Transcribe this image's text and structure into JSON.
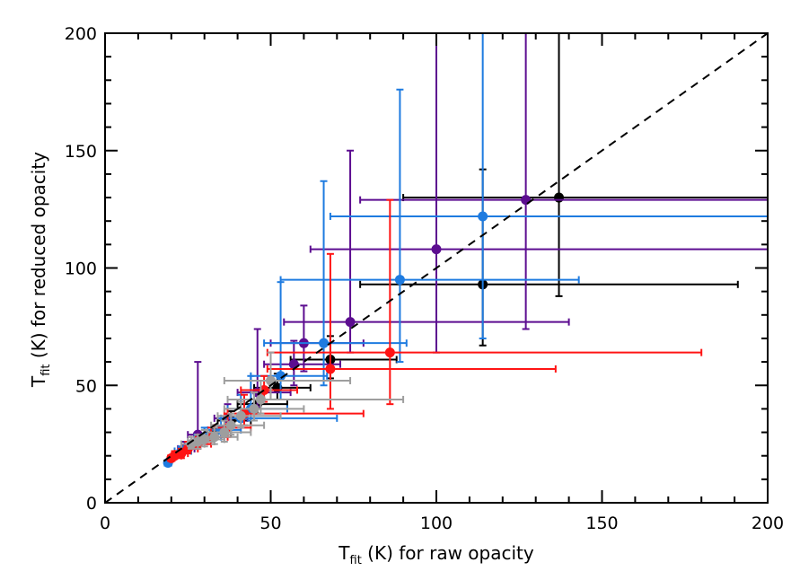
{
  "chart_data": {
    "type": "scatter",
    "title": "",
    "xlim": [
      0,
      200
    ],
    "ylim": [
      0,
      200
    ],
    "x_ticks": [
      0,
      50,
      100,
      150,
      200
    ],
    "y_ticks": [
      0,
      50,
      100,
      150,
      200
    ],
    "xlabel": {
      "main": "T",
      "sub": "fit",
      "rest": " (K) for raw opacity"
    },
    "ylabel": {
      "main": "T",
      "sub": "fit",
      "rest": " (K) for reduced opacity"
    },
    "grid": false,
    "legend": "none",
    "reference_line": {
      "type": "identity",
      "style": "dashed",
      "color": "#000000"
    },
    "series": [
      {
        "color": "#000000",
        "points": [
          {
            "x": 137,
            "y": 130,
            "xerr": [
              47,
              63
            ],
            "yerr": [
              42,
              70
            ]
          },
          {
            "x": 114,
            "y": 93,
            "xerr": [
              37,
              77
            ],
            "yerr": [
              26,
              49
            ]
          },
          {
            "x": 68,
            "y": 61,
            "xerr": [
              12,
              20
            ],
            "yerr": [
              8,
              10
            ]
          },
          {
            "x": 52,
            "y": 49,
            "xerr": [
              7,
              10
            ],
            "yerr": [
              5,
              6
            ]
          },
          {
            "x": 46,
            "y": 42,
            "xerr": [
              6,
              9
            ],
            "yerr": [
              4,
              5
            ]
          },
          {
            "x": 38,
            "y": 35,
            "xerr": [
              4,
              6
            ],
            "yerr": [
              3,
              4
            ]
          },
          {
            "x": 33,
            "y": 30,
            "xerr": [
              3,
              5
            ],
            "yerr": [
              3,
              3
            ]
          }
        ]
      },
      {
        "color": "#5c0d90",
        "points": [
          {
            "x": 127,
            "y": 129,
            "xerr": [
              50,
              73
            ],
            "yerr": [
              55,
              71
            ]
          },
          {
            "x": 100,
            "y": 108,
            "xerr": [
              38,
              100
            ],
            "yerr": [
              44,
              92
            ]
          },
          {
            "x": 74,
            "y": 77,
            "xerr": [
              20,
              66
            ],
            "yerr": [
              13,
              73
            ]
          },
          {
            "x": 60,
            "y": 68,
            "xerr": [
              10,
              18
            ],
            "yerr": [
              12,
              16
            ]
          },
          {
            "x": 57,
            "y": 59,
            "xerr": [
              9,
              14
            ],
            "yerr": [
              9,
              10
            ]
          },
          {
            "x": 46,
            "y": 47,
            "xerr": [
              6,
              10
            ],
            "yerr": [
              6,
              27
            ]
          },
          {
            "x": 37,
            "y": 36,
            "xerr": [
              4,
              6
            ],
            "yerr": [
              4,
              6
            ]
          },
          {
            "x": 28,
            "y": 29,
            "xerr": [
              3,
              4
            ],
            "yerr": [
              4,
              31
            ]
          },
          {
            "x": 24,
            "y": 23,
            "xerr": [
              2,
              3
            ],
            "yerr": [
              2,
              3
            ]
          }
        ]
      },
      {
        "color": "#1e7be0",
        "points": [
          {
            "x": 114,
            "y": 122,
            "xerr": [
              46,
              86
            ],
            "yerr": [
              52,
              78
            ]
          },
          {
            "x": 89,
            "y": 95,
            "xerr": [
              36,
              54
            ],
            "yerr": [
              35,
              81
            ]
          },
          {
            "x": 66,
            "y": 68,
            "xerr": [
              18,
              25
            ],
            "yerr": [
              18,
              69
            ]
          },
          {
            "x": 53,
            "y": 54,
            "xerr": [
              9,
              14
            ],
            "yerr": [
              10,
              40
            ]
          },
          {
            "x": 44,
            "y": 40,
            "xerr": [
              7,
              11
            ],
            "yerr": [
              5,
              14
            ]
          },
          {
            "x": 41,
            "y": 36,
            "xerr": [
              6,
              29
            ],
            "yerr": [
              4,
              10
            ]
          },
          {
            "x": 35,
            "y": 31,
            "xerr": [
              4,
              6
            ],
            "yerr": [
              3,
              5
            ]
          },
          {
            "x": 30,
            "y": 28,
            "xerr": [
              3,
              5
            ],
            "yerr": [
              3,
              4
            ]
          },
          {
            "x": 23,
            "y": 22,
            "xerr": [
              2,
              3
            ],
            "yerr": [
              2,
              2
            ]
          },
          {
            "x": 19,
            "y": 17,
            "xerr": [
              1,
              1
            ],
            "yerr": [
              1,
              1
            ]
          }
        ]
      },
      {
        "color": "#ff1414",
        "points": [
          {
            "x": 86,
            "y": 64,
            "xerr": [
              37,
              94
            ],
            "yerr": [
              22,
              65
            ]
          },
          {
            "x": 68,
            "y": 57,
            "xerr": [
              19,
              68
            ],
            "yerr": [
              17,
              49
            ]
          },
          {
            "x": 48,
            "y": 48,
            "xerr": [
              7,
              10
            ],
            "yerr": [
              5,
              6
            ]
          },
          {
            "x": 42,
            "y": 38,
            "xerr": [
              6,
              36
            ],
            "yerr": [
              5,
              8
            ]
          },
          {
            "x": 37,
            "y": 32,
            "xerr": [
              4,
              7
            ],
            "yerr": [
              4,
              8
            ]
          },
          {
            "x": 32,
            "y": 28,
            "xerr": [
              4,
              5
            ],
            "yerr": [
              3,
              4
            ]
          },
          {
            "x": 28,
            "y": 25,
            "xerr": [
              3,
              4
            ],
            "yerr": [
              2,
              3
            ]
          },
          {
            "x": 25,
            "y": 23,
            "xerr": [
              2,
              3
            ],
            "yerr": [
              2,
              3
            ]
          },
          {
            "x": 23,
            "y": 21,
            "xerr": [
              2,
              2
            ],
            "yerr": [
              2,
              2
            ]
          },
          {
            "x": 21,
            "y": 20,
            "xerr": [
              1,
              2
            ],
            "yerr": [
              1,
              2
            ]
          },
          {
            "x": 20,
            "y": 19,
            "xerr": [
              1,
              1
            ],
            "yerr": [
              1,
              1
            ]
          }
        ]
      },
      {
        "color": "#9e9e9e",
        "points": [
          {
            "x": 50,
            "y": 52,
            "xerr": [
              14,
              24
            ],
            "yerr": [
              8,
              12
            ]
          },
          {
            "x": 47,
            "y": 44,
            "xerr": [
              10,
              43
            ],
            "yerr": [
              6,
              8
            ]
          },
          {
            "x": 45,
            "y": 40,
            "xerr": [
              9,
              15
            ],
            "yerr": [
              5,
              7
            ]
          },
          {
            "x": 41,
            "y": 37,
            "xerr": [
              7,
              12
            ],
            "yerr": [
              5,
              6
            ]
          },
          {
            "x": 38,
            "y": 33,
            "xerr": [
              6,
              10
            ],
            "yerr": [
              4,
              5
            ]
          },
          {
            "x": 36,
            "y": 30,
            "xerr": [
              5,
              8
            ],
            "yerr": [
              4,
              5
            ]
          },
          {
            "x": 33,
            "y": 28,
            "xerr": [
              5,
              7
            ],
            "yerr": [
              3,
              4
            ]
          },
          {
            "x": 30,
            "y": 27,
            "xerr": [
              4,
              6
            ],
            "yerr": [
              3,
              4
            ]
          },
          {
            "x": 28,
            "y": 26,
            "xerr": [
              3,
              5
            ],
            "yerr": [
              3,
              3
            ]
          },
          {
            "x": 26,
            "y": 25,
            "xerr": [
              3,
              4
            ],
            "yerr": [
              2,
              3
            ]
          }
        ]
      }
    ]
  }
}
